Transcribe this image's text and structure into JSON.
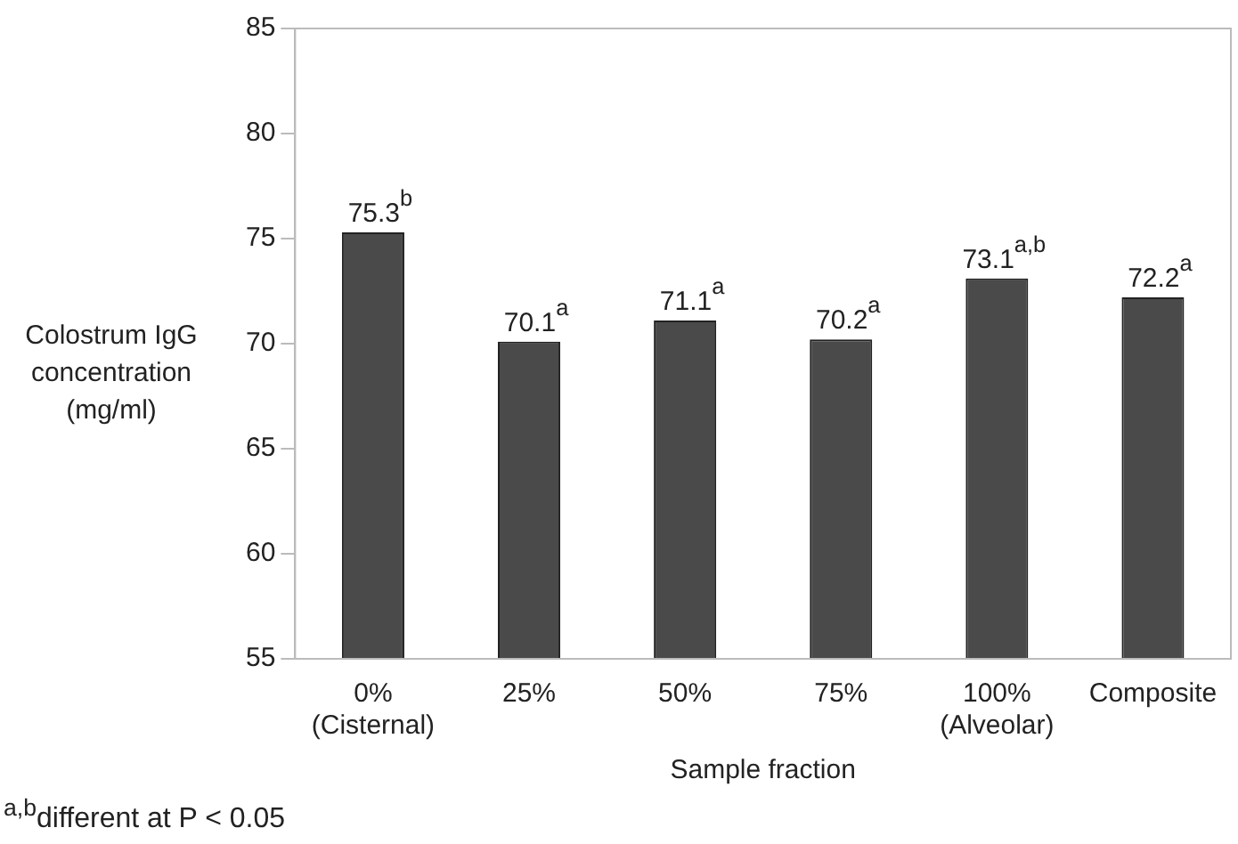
{
  "chart_data": {
    "type": "bar",
    "xlabel": "Sample fraction",
    "ylabel": "Colostrum IgG\nconcentration\n(mg/ml)",
    "categories": [
      "0%\n(Cisternal)",
      "25%",
      "50%",
      "75%",
      "100%\n(Alveolar)",
      "Composite"
    ],
    "values": [
      75.3,
      70.1,
      71.1,
      70.2,
      73.1,
      72.2
    ],
    "value_labels": [
      "75.3$^{b}$",
      "70.1$^{a}$",
      "71.1$^{a}$",
      "70.2$^{a}$",
      "73.1$^{a,b}$",
      "72.2$^{a}$"
    ],
    "color": "#4a4a4a",
    "ylim": [
      55,
      85
    ],
    "yticks": [
      55,
      60,
      65,
      70,
      75,
      80,
      85
    ],
    "grid": false,
    "legend": false,
    "annotations": [
      "$^{a,b}$different at P < 0.05"
    ]
  }
}
